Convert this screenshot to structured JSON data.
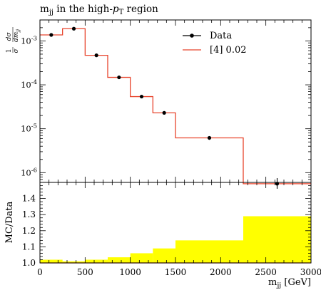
{
  "chart_data": [
    {
      "type": "line",
      "title": "m_jj in the high-p_T region",
      "ylabel": "1/σ dσ/dm_jj",
      "yscale": "log",
      "xlim": [
        0,
        3000
      ],
      "ylim": [
        6e-07,
        0.003
      ],
      "y_ticks": [
        {
          "value": 1e-06,
          "label": "10^-6"
        },
        {
          "value": 1e-05,
          "label": "10^-5"
        },
        {
          "value": 0.0001,
          "label": "10^-4"
        },
        {
          "value": 0.001,
          "label": "10^-3"
        }
      ],
      "legend": {
        "position": "top-right"
      },
      "series": [
        {
          "name": "Data",
          "kind": "points",
          "color": "#000000",
          "x": [
            125,
            375,
            625,
            875,
            1125,
            1375,
            1875,
            2625
          ],
          "y": [
            0.00137,
            0.0019,
            0.00047,
            0.000148,
            5.4e-05,
            2.3e-05,
            6.2e-06,
            5.6e-07
          ],
          "y_err_low": [
            4e-05,
            5e-05,
            1e-05,
            4e-06,
            2.5e-06,
            1.5e-06,
            6e-07,
            1.3e-07
          ],
          "y_err_high": [
            4e-05,
            5e-05,
            1e-05,
            4e-06,
            2.5e-06,
            1.5e-06,
            6e-07,
            1.9e-07
          ]
        },
        {
          "name": "[4] 0.02",
          "kind": "histogram",
          "color": "#e8442c",
          "bin_edges": [
            0,
            250,
            500,
            750,
            1000,
            1250,
            1500,
            2250,
            3000
          ],
          "values": [
            0.00137,
            0.0019,
            0.00047,
            0.000148,
            5.4e-05,
            2.3e-05,
            6.2e-06,
            5.6e-07
          ]
        }
      ]
    },
    {
      "type": "area",
      "ylabel": "MC/Data",
      "xlabel": "m_jj [GeV]",
      "xlim": [
        0,
        3000
      ],
      "ylim": [
        1.0,
        1.5
      ],
      "x_ticks": [
        0,
        500,
        1000,
        1500,
        2000,
        2500,
        3000
      ],
      "y_ticks": [
        1.0,
        1.1,
        1.2,
        1.3,
        1.4
      ],
      "y_tick_labels": [
        "1.0",
        "1.1",
        "1.2",
        "1.3",
        "1.4"
      ],
      "band_color": "#ffff00",
      "bin_edges": [
        0,
        250,
        500,
        750,
        1000,
        1250,
        1500,
        2250,
        3000
      ],
      "band_upper": [
        1.02,
        1.01,
        1.02,
        1.035,
        1.06,
        1.09,
        1.14,
        1.29
      ],
      "ratio": [
        1.0,
        1.0,
        1.0,
        1.0,
        1.0,
        1.0,
        1.0,
        1.0
      ]
    }
  ]
}
